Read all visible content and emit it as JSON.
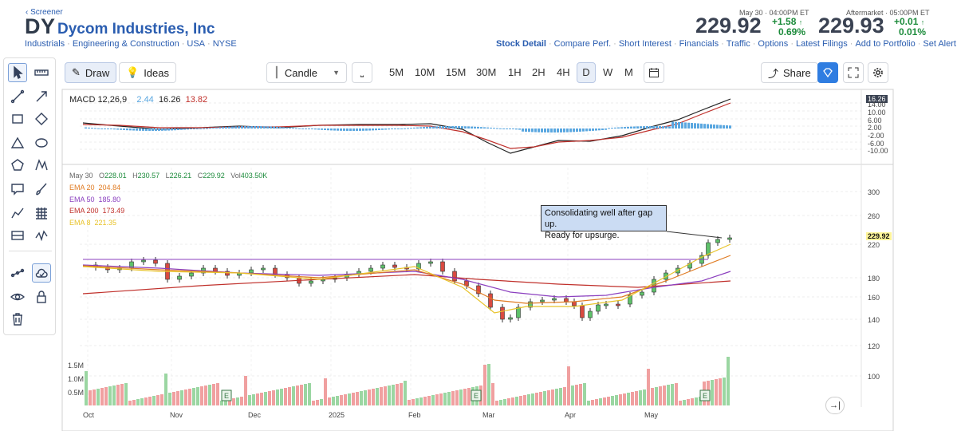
{
  "header": {
    "breadcrumb": "Screener",
    "ticker": "DY",
    "company": "Dycom Industries, Inc",
    "sector": "Industrials",
    "industry": "Engineering & Construction",
    "country": "USA",
    "exchange": "NYSE"
  },
  "quote": {
    "time": "May 30 · 04:00PM ET",
    "price": "229.92",
    "change": "+1.58",
    "change_pct": "0.69",
    "after_time": "Aftermarket · 05:00PM ET",
    "after_price": "229.93",
    "after_change": "+0.01",
    "after_change_pct": "0.01",
    "pct_sign": "%"
  },
  "links": [
    "Stock Detail",
    "Compare Perf.",
    "Short Interest",
    "Financials",
    "Traffic",
    "Options",
    "Latest Filings",
    "Add to Portfolio",
    "Set Alert"
  ],
  "toolbar": {
    "draw": "Draw",
    "ideas": "Ideas",
    "chart_type": "Candle",
    "timeframes": [
      "5M",
      "10M",
      "15M",
      "30M",
      "1H",
      "2H",
      "4H",
      "D",
      "W",
      "M"
    ],
    "active_timeframe": "D",
    "share": "Share"
  },
  "macd": {
    "label": "MACD 12,26,9",
    "hist": "2.44",
    "macd": "16.26",
    "signal": "13.82",
    "badge": "16.26",
    "axis": [
      "14.00",
      "10.00",
      "6.00",
      "2.00",
      "-2.00",
      "-6.00",
      "-10.00"
    ]
  },
  "ohlc": {
    "date": "May 30",
    "o_label": "O",
    "o": "228.01",
    "h_label": "H",
    "h": "230.57",
    "l_label": "L",
    "l": "226.21",
    "c_label": "C",
    "c": "229.92",
    "v_label": "Vol",
    "v": "403.50K"
  },
  "emas": [
    {
      "label": "EMA 20",
      "value": "204.84",
      "color": "#e07b22"
    },
    {
      "label": "EMA 50",
      "value": "185.80",
      "color": "#8b3fbf"
    },
    {
      "label": "EMA 200",
      "value": "173.49",
      "color": "#c0302b"
    },
    {
      "label": "EMA 8",
      "value": "221.35",
      "color": "#e8c32a"
    }
  ],
  "annotation": {
    "line1": "Consolidating well after gap up.",
    "line2": "Ready for upsurge."
  },
  "price_axis": [
    "300",
    "260",
    "220",
    "180",
    "160",
    "140",
    "120",
    "100"
  ],
  "price_badge": "229.92",
  "volume_axis": [
    "1.5M",
    "1.0M",
    "0.5M"
  ],
  "months": [
    "Oct",
    "Nov",
    "Dec",
    "2025",
    "Feb",
    "Mar",
    "Apr",
    "May"
  ],
  "earnings_marker": "E",
  "colors": {
    "up": "#1c8b3b",
    "down": "#c0302b",
    "link": "#2a5db0",
    "accent": "#2f7de1"
  }
}
